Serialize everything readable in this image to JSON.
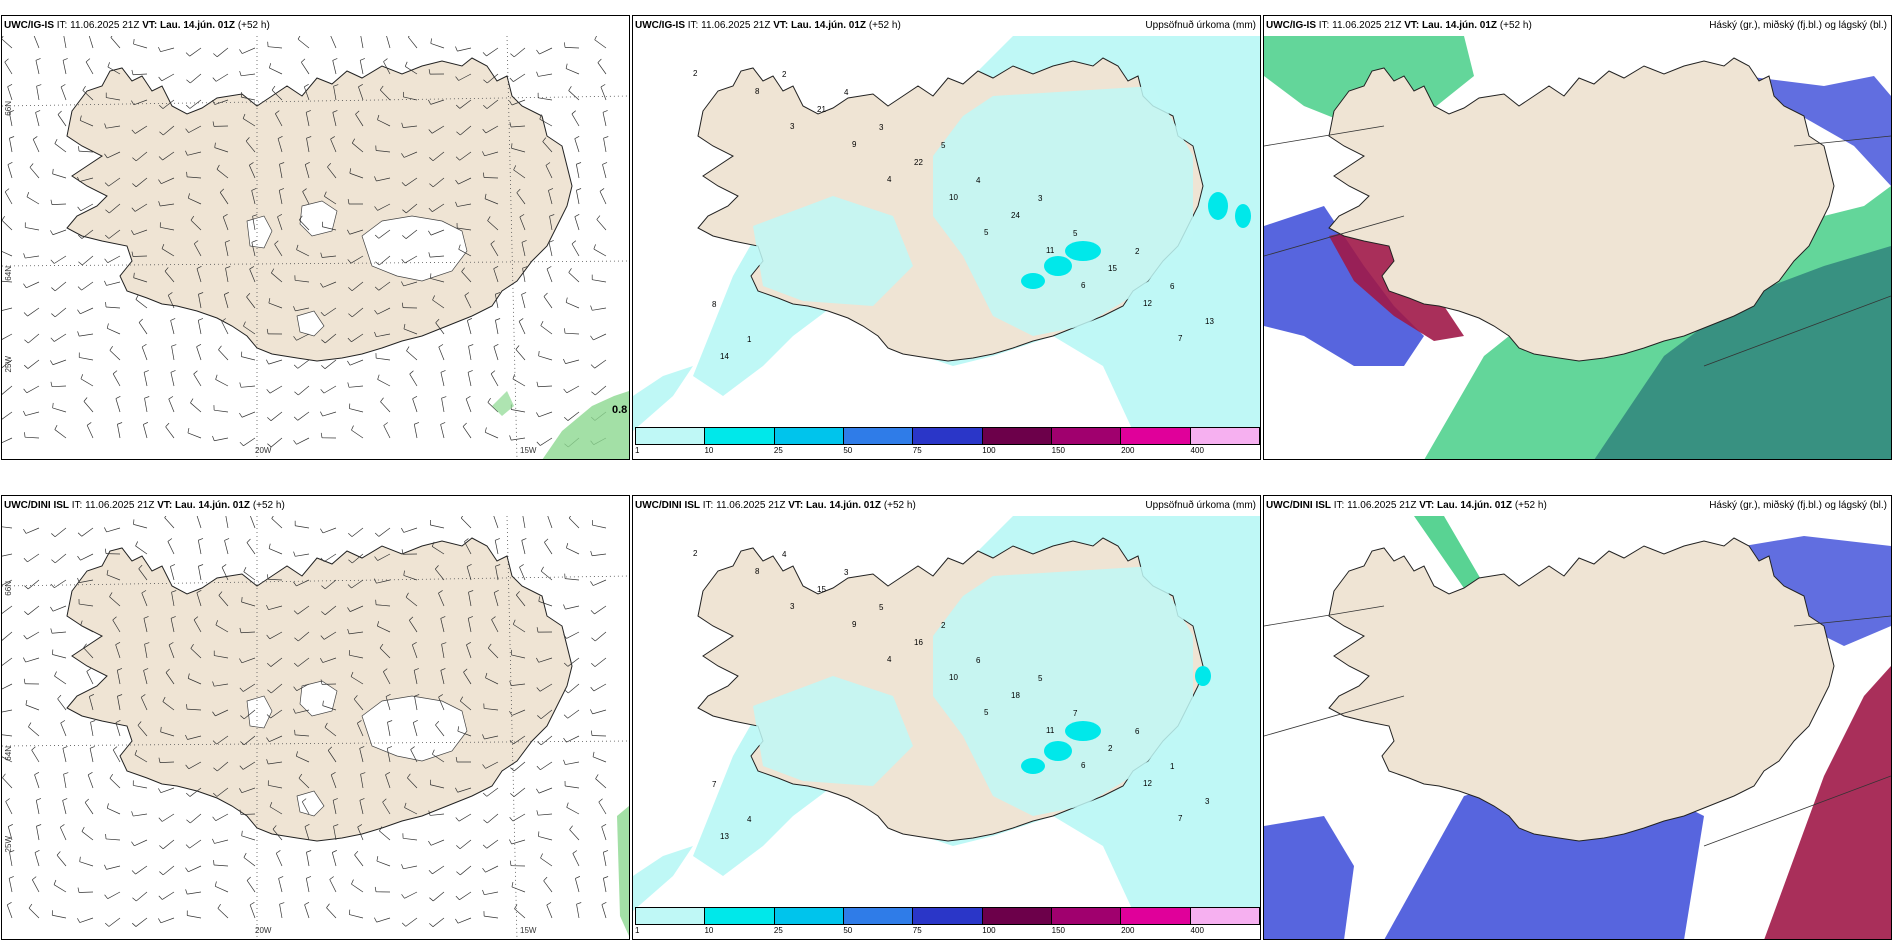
{
  "panels": [
    {
      "model": "UWC/IG-IS",
      "it_label": "IT:",
      "it": "11.06.2025 21Z",
      "vt_label": "VT:",
      "vt": "Lau. 14.jún. 01Z",
      "lead": "(+52 h)",
      "right_title": "",
      "type": "wind"
    },
    {
      "model": "UWC/IG-IS",
      "it_label": "IT:",
      "it": "11.06.2025 21Z",
      "vt_label": "VT:",
      "vt": "Lau. 14.jún. 01Z",
      "lead": "(+52 h)",
      "right_title": "Uppsöfnuð úrkoma (mm)",
      "type": "precip"
    },
    {
      "model": "UWC/IG-IS",
      "it_label": "IT:",
      "it": "11.06.2025 21Z",
      "vt_label": "VT:",
      "vt": "Lau. 14.jún. 01Z",
      "lead": "(+52 h)",
      "right_title": "Háský (gr.), miðský (fj.bl.) og lágský (bl.)",
      "type": "cloud"
    },
    {
      "model": "UWC/DINI ISL",
      "it_label": "IT:",
      "it": "11.06.2025 21Z",
      "vt_label": "VT:",
      "vt": "Lau. 14.jún. 01Z",
      "lead": "(+52 h)",
      "right_title": "",
      "type": "wind"
    },
    {
      "model": "UWC/DINI ISL",
      "it_label": "IT:",
      "it": "11.06.2025 21Z",
      "vt_label": "VT:",
      "vt": "Lau. 14.jún. 01Z",
      "lead": "(+52 h)",
      "right_title": "Uppsöfnuð úrkoma (mm)",
      "type": "precip"
    },
    {
      "model": "UWC/DINI ISL",
      "it_label": "IT:",
      "it": "11.06.2025 21Z",
      "vt_label": "VT:",
      "vt": "Lau. 14.jún. 01Z",
      "lead": "(+52 h)",
      "right_title": "Háský (gr.), miðský (fj.bl.) og lágský (bl.)",
      "type": "cloud"
    }
  ],
  "grid_labels": {
    "lat_66": "66N",
    "lat_64": "64N",
    "lon_25": "25W",
    "lon_20": "20W",
    "lon_15": "15W"
  },
  "max_label": "0.8",
  "colorbar": {
    "ticks": [
      "1",
      "10",
      "25",
      "50",
      "75",
      "100",
      "150",
      "200",
      "400"
    ],
    "colors": [
      "#bff8f6",
      "#00e8ea",
      "#00c4ec",
      "#2f7ce8",
      "#2a36c8",
      "#6c004a",
      "#a0006e",
      "#e0009a",
      "#f6b0f0"
    ]
  },
  "precip_numbers_top": [
    "2",
    "3",
    "4",
    "5",
    "6",
    "7",
    "8",
    "9",
    "10",
    "11",
    "12",
    "14",
    "21",
    "22",
    "24",
    "15",
    "13",
    "2",
    "3",
    "4",
    "5",
    "6",
    "1",
    "4",
    "5",
    "3",
    "2",
    "8"
  ],
  "precip_numbers_bottom": [
    "2",
    "3",
    "4",
    "5",
    "6",
    "7",
    "8",
    "9",
    "10",
    "11",
    "12",
    "13",
    "15",
    "16",
    "18",
    "2",
    "3",
    "4",
    "5",
    "6",
    "7",
    "1",
    "4",
    "3",
    "2",
    "5",
    "6",
    "7"
  ],
  "colors": {
    "land": "#efe4d4",
    "coast": "#222222",
    "precip_light": "#bff8f6",
    "precip_mid": "#00e8ea",
    "cloud_high_green": "#2fc878",
    "cloud_mid_blue": "#3a4ad8",
    "cloud_low_red": "#a01848"
  }
}
